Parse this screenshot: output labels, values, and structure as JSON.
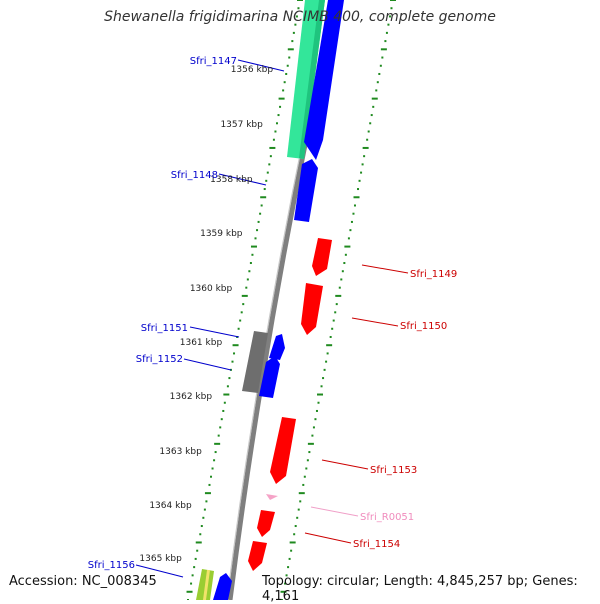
{
  "title": "Shewanella frigidimarina NCIMB 400, complete genome",
  "accession": "Accession: NC_008345",
  "summary": "Topology: circular; Length: 4,845,257 bp; Genes: 4,161",
  "colors": {
    "forward_gene": "#0000ff",
    "reverse_gene": "#ff0000",
    "rna_gene": "#f5a3c7",
    "highlight_gene": "#33e69a",
    "grey_gene": "#7a7a7a",
    "ticks": "#1f8a1f",
    "backbone": "#808080"
  },
  "scale_labels": [
    {
      "kbp": 1356,
      "text": "1356 kbp"
    },
    {
      "kbp": 1357,
      "text": "1357 kbp"
    },
    {
      "kbp": 1358,
      "text": "1358 kbp"
    },
    {
      "kbp": 1359,
      "text": "1359 kbp"
    },
    {
      "kbp": 1360,
      "text": "1360 kbp"
    },
    {
      "kbp": 1361,
      "text": "1361 kbp"
    },
    {
      "kbp": 1362,
      "text": "1362 kbp"
    },
    {
      "kbp": 1363,
      "text": "1363 kbp"
    },
    {
      "kbp": 1364,
      "text": "1364 kbp"
    },
    {
      "kbp": 1365,
      "text": "1365 kbp"
    }
  ],
  "gene_labels": [
    {
      "name": "Sfri_1147",
      "strand": "forward"
    },
    {
      "name": "Sfri_1148",
      "strand": "forward"
    },
    {
      "name": "Sfri_1149",
      "strand": "reverse"
    },
    {
      "name": "Sfri_1150",
      "strand": "reverse"
    },
    {
      "name": "Sfri_1151",
      "strand": "forward"
    },
    {
      "name": "Sfri_1152",
      "strand": "forward"
    },
    {
      "name": "Sfri_1153",
      "strand": "reverse"
    },
    {
      "name": "Sfri_R0051",
      "strand": "rna"
    },
    {
      "name": "Sfri_1154",
      "strand": "reverse"
    },
    {
      "name": "Sfri_1156",
      "strand": "forward"
    }
  ]
}
